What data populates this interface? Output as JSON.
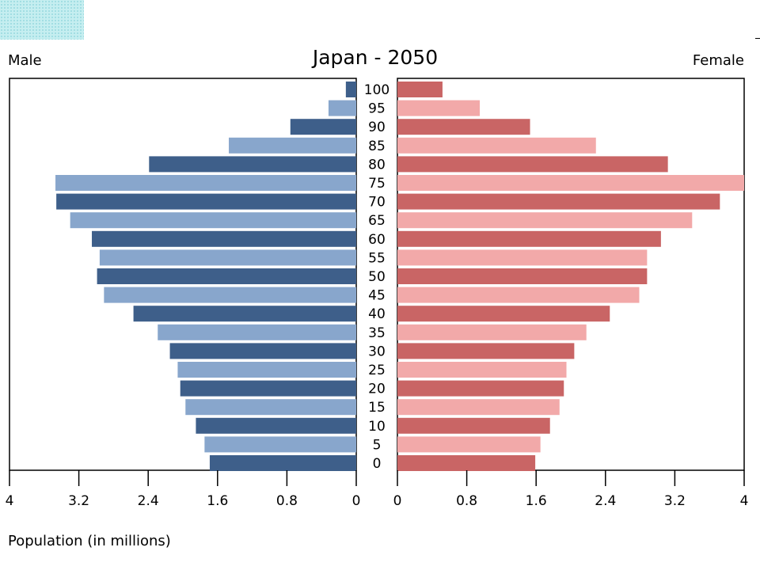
{
  "chart_data": {
    "type": "bar",
    "subtype": "population-pyramid",
    "title": "Japan - 2050",
    "left_label": "Male",
    "right_label": "Female",
    "xlabel": "Population (in millions)",
    "xlim": [
      0,
      4
    ],
    "xticks": [
      "4",
      "3.2",
      "2.4",
      "1.6",
      "0.8",
      "0"
    ],
    "xticks_right": [
      "0",
      "0.8",
      "1.6",
      "2.4",
      "3.2",
      "4"
    ],
    "categories": [
      "100",
      "95",
      "90",
      "85",
      "80",
      "75",
      "70",
      "65",
      "60",
      "55",
      "50",
      "45",
      "40",
      "35",
      "30",
      "25",
      "20",
      "15",
      "10",
      "5",
      "0"
    ],
    "series": [
      {
        "name": "Male",
        "values": [
          0.12,
          0.32,
          0.76,
          1.47,
          2.39,
          3.47,
          3.46,
          3.3,
          3.05,
          2.96,
          2.99,
          2.91,
          2.57,
          2.29,
          2.15,
          2.06,
          2.03,
          1.97,
          1.85,
          1.75,
          1.69
        ]
      },
      {
        "name": "Female",
        "values": [
          0.52,
          0.95,
          1.53,
          2.29,
          3.12,
          4.0,
          3.72,
          3.4,
          3.04,
          2.88,
          2.88,
          2.79,
          2.45,
          2.18,
          2.04,
          1.95,
          1.92,
          1.87,
          1.76,
          1.65,
          1.59
        ]
      }
    ],
    "colors": {
      "male_dark": "#3e5f8a",
      "male_light": "#88a6cc",
      "female_dark": "#c96565",
      "female_light": "#f2a9a9"
    },
    "grid": false
  }
}
